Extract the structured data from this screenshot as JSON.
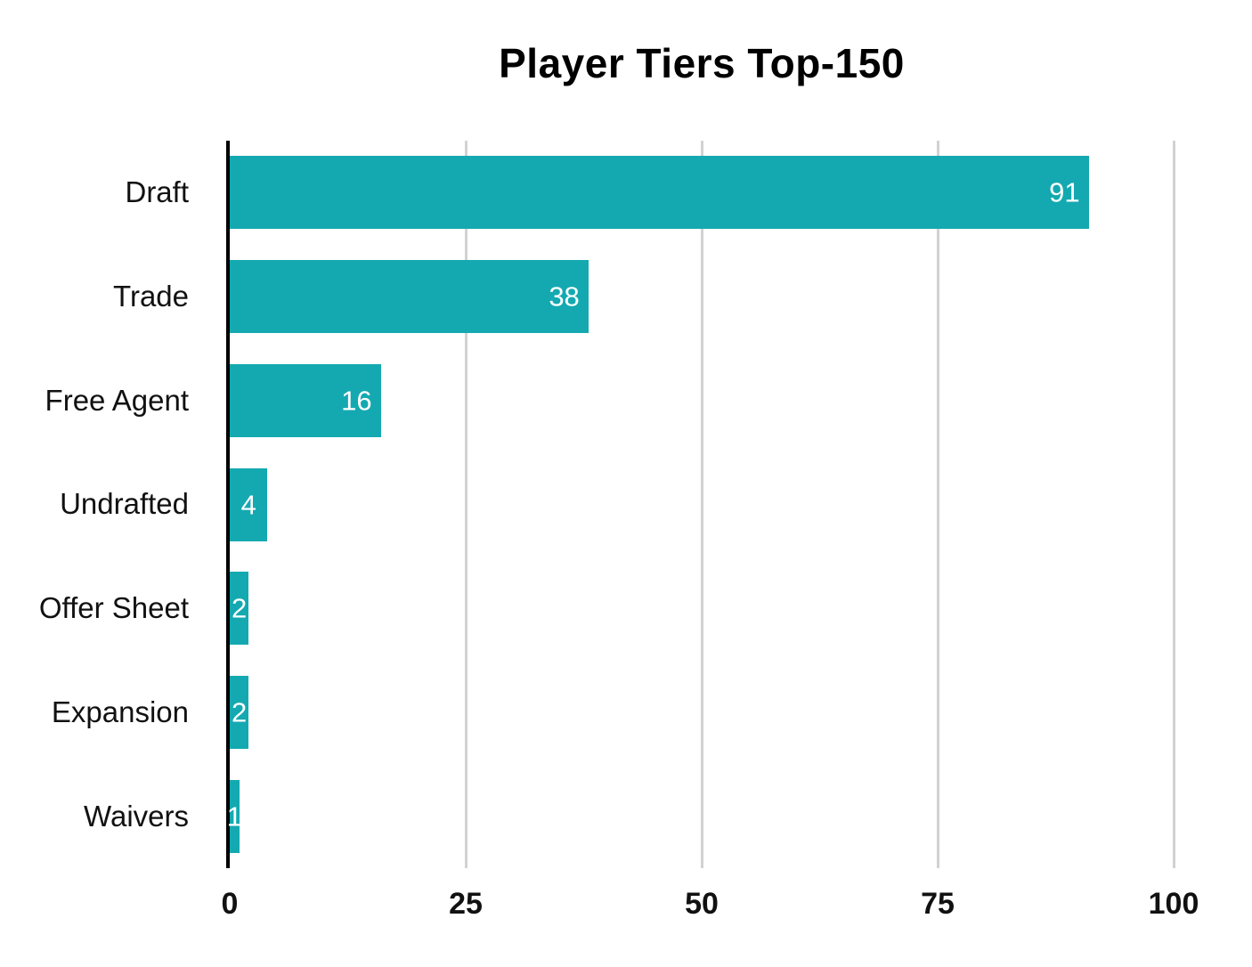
{
  "title": "Player Tiers Top-150",
  "colors": {
    "bar": "#14A9B1",
    "gridline": "#D2D2D2",
    "axis_line": "#000000",
    "value_label": "#FFFFFF",
    "category_label": "#111111",
    "tick_label": "#111111",
    "background": "#FFFFFF"
  },
  "chart_data": {
    "type": "bar",
    "orientation": "horizontal",
    "title": "Player Tiers Top-150",
    "categories": [
      "Draft",
      "Trade",
      "Free Agent",
      "Undrafted",
      "Offer Sheet",
      "Expansion",
      "Waivers"
    ],
    "values": [
      91,
      38,
      16,
      4,
      2,
      2,
      1
    ],
    "xlabel": "",
    "ylabel": "",
    "xlim": [
      0,
      104
    ],
    "xticks": [
      0,
      25,
      50,
      75,
      100
    ],
    "grid": "vertical-gridlines-on",
    "legend": "none",
    "value_labels_position": "inside-end"
  }
}
